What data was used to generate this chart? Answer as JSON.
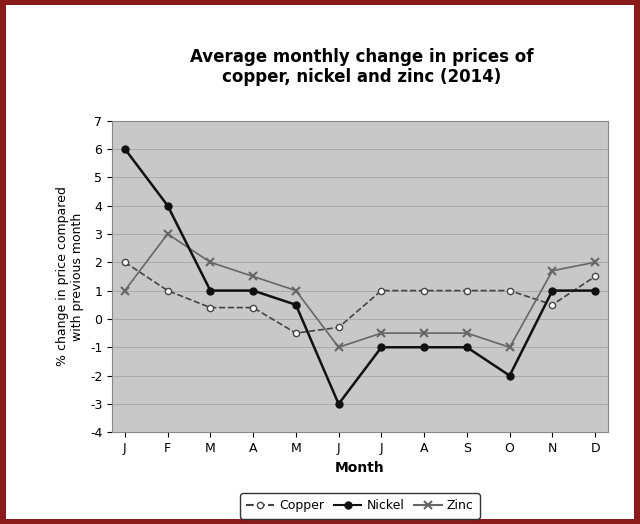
{
  "title": "Average monthly change in prices of\ncopper, nickel and zinc (2014)",
  "xlabel": "Month",
  "ylabel": "% change in price compared\nwith previous month",
  "months": [
    "J",
    "F",
    "M",
    "A",
    "M",
    "J",
    "J",
    "A",
    "S",
    "O",
    "N",
    "D"
  ],
  "copper": [
    2,
    1,
    0.4,
    0.4,
    -0.5,
    -0.3,
    1,
    1,
    1,
    1,
    0.5,
    1.5
  ],
  "nickel": [
    6,
    4,
    1,
    1,
    0.5,
    -3,
    -1,
    -1,
    -1,
    -2,
    1,
    1
  ],
  "zinc": [
    1,
    3,
    2,
    1.5,
    1,
    -1,
    -0.5,
    -0.5,
    -0.5,
    -1,
    1.7,
    2
  ],
  "ylim": [
    -4,
    7
  ],
  "yticks": [
    -4,
    -3,
    -2,
    -1,
    0,
    1,
    2,
    3,
    4,
    5,
    6,
    7
  ],
  "plot_bg": "#cccccc",
  "outer_bg": "#8b1a1a",
  "figure_bg": "#c8c8c8",
  "line_color_copper": "#444444",
  "line_color_nickel": "#111111",
  "line_color_zinc": "#666666",
  "title_fontsize": 12,
  "label_fontsize": 9,
  "tick_fontsize": 9,
  "legend_fontsize": 9
}
